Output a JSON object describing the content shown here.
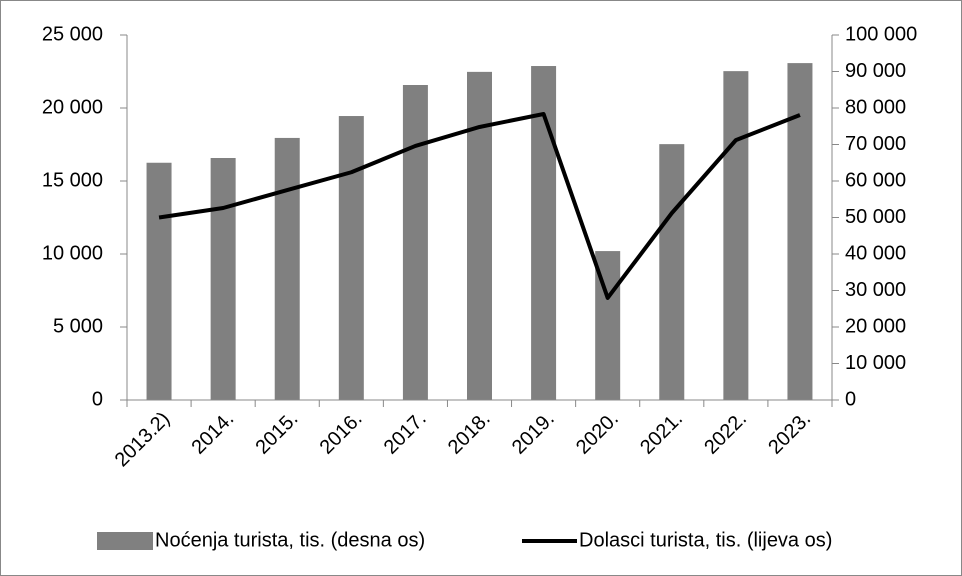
{
  "chart_data": {
    "type": "bar",
    "categories": [
      "2013.2)",
      "2014.",
      "2015.",
      "2016.",
      "2017.",
      "2018.",
      "2019.",
      "2020.",
      "2021.",
      "2022.",
      "2023."
    ],
    "series": [
      {
        "name": "Noćenja turista, tis. (desna os)",
        "type": "bar",
        "color": "#808080",
        "axis": "y2",
        "values": [
          65000,
          66300,
          71800,
          77800,
          86300,
          89900,
          91500,
          40800,
          70100,
          90100,
          92300
        ]
      },
      {
        "name": "Dolasci turista, tis. (lijeva os)",
        "type": "line",
        "color": "#000000",
        "axis": "y",
        "values": [
          12500,
          13150,
          14380,
          15600,
          17400,
          18700,
          19590,
          6990,
          12800,
          17800,
          19520
        ]
      }
    ],
    "ylim": [
      0,
      25000
    ],
    "yticks": [
      0,
      {
        "value": 5000,
        "label": "5 000"
      },
      {
        "value": 10000,
        "label": "10 000"
      },
      {
        "value": 15000,
        "label": "15 000"
      },
      {
        "value": 20000,
        "label": "20 000"
      },
      {
        "value": 25000,
        "label": "25 000"
      }
    ],
    "y2lim": [
      0,
      100000
    ],
    "y2ticks": [
      0,
      {
        "value": 10000,
        "label": "10 000"
      },
      {
        "value": 20000,
        "label": "20 000"
      },
      {
        "value": 30000,
        "label": "30 000"
      },
      {
        "value": 40000,
        "label": "40 000"
      },
      {
        "value": 50000,
        "label": "50 000"
      },
      {
        "value": 60000,
        "label": "60 000"
      },
      {
        "value": 70000,
        "label": "70 000"
      },
      {
        "value": 80000,
        "label": "80 000"
      },
      {
        "value": 90000,
        "label": "90 000"
      },
      {
        "value": 100000,
        "label": "100 000"
      }
    ],
    "grid": false,
    "legend": "bottom"
  }
}
